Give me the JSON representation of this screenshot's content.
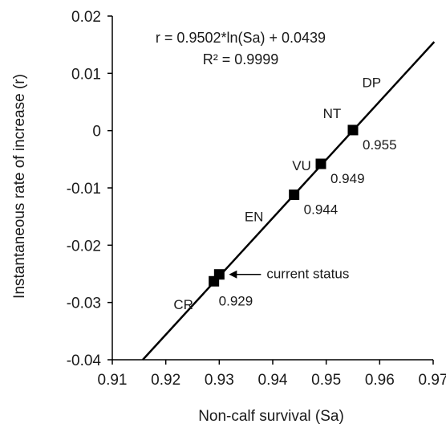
{
  "chart_data": {
    "type": "scatter",
    "title": "",
    "xlabel": "Non-calf survival (Sa)",
    "ylabel": "Instantaneous rate of increase (r)",
    "xlim": [
      0.91,
      0.97
    ],
    "ylim": [
      -0.04,
      0.02
    ],
    "x_ticks": [
      "0.91",
      "0.92",
      "0.93",
      "0.94",
      "0.95",
      "0.96",
      "0.97"
    ],
    "y_ticks": [
      "0.02",
      "0.01",
      "0",
      "-0.01",
      "-0.02",
      "-0.03",
      "-0.04"
    ],
    "grid": false,
    "legend": "none",
    "equation": "r = 0.9502*ln(Sa) + 0.0439",
    "r_squared": "R² = 0.9999",
    "fit_line": {
      "x": [
        0.9157,
        0.9702
      ],
      "y": [
        -0.04,
        0.0155
      ]
    },
    "points": [
      {
        "x": 0.929,
        "y": -0.0263,
        "label": "0.929"
      },
      {
        "x": 0.93,
        "y": -0.0251,
        "label": ""
      },
      {
        "x": 0.944,
        "y": -0.0112,
        "label": "0.944"
      },
      {
        "x": 0.949,
        "y": -0.0058,
        "label": "0.949"
      },
      {
        "x": 0.955,
        "y": 0.0001,
        "label": "0.955"
      }
    ],
    "categories": [
      {
        "label": "CR"
      },
      {
        "label": "EN"
      },
      {
        "label": "VU"
      },
      {
        "label": "NT"
      },
      {
        "label": "DP"
      }
    ],
    "annotation": "current status",
    "color": "#000000"
  }
}
